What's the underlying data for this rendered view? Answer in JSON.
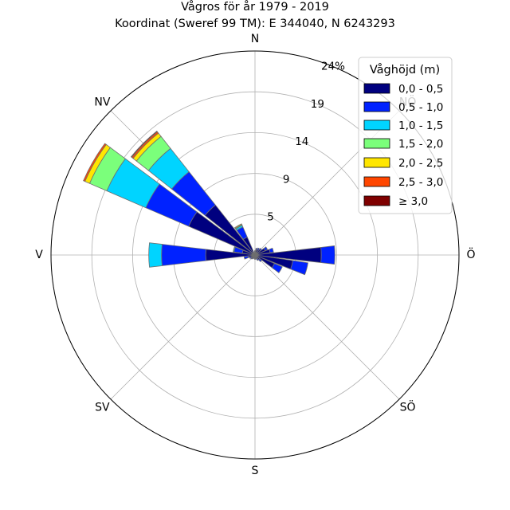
{
  "chart_data": {
    "type": "wind-rose",
    "title": "Vågros för år 1979 - 2019",
    "subtitle": "Koordinat (Sweref 99 TM): E 344040, N 6243293",
    "directions": [
      "Ö",
      "NÖ",
      "N",
      "NV",
      "V",
      "SV",
      "S",
      "SÖ"
    ],
    "radial_ticks": [
      "5",
      "9",
      "14",
      "19",
      "24%"
    ],
    "radial_tick_values": [
      4.8,
      9.6,
      14.4,
      19.2,
      24
    ],
    "rmax": 24,
    "legend_title": "Våghöjd (m)",
    "legend_position": "top-right",
    "bins": [
      {
        "label": "0,0 - 0,5",
        "color": "#00007f"
      },
      {
        "label": "0,5 - 1,0",
        "color": "#0022ff"
      },
      {
        "label": "1,0 - 1,5",
        "color": "#00d4ff"
      },
      {
        "label": "1,5 - 2,0",
        "color": "#7bff7b"
      },
      {
        "label": "2,0 - 2,5",
        "color": "#ffe600"
      },
      {
        "label": "2,5 - 3,0",
        "color": "#ff4600"
      },
      {
        "label": "≥ 3,0",
        "color": "#7f0000"
      }
    ],
    "sectors": [
      {
        "angle": 0,
        "cumulative": [
          7.8,
          9.4,
          9.4,
          9.4,
          9.4,
          9.4,
          9.4
        ]
      },
      {
        "angle": 15,
        "cumulative": [
          1.8,
          2.2,
          2.2,
          2.2,
          2.2,
          2.2,
          2.2
        ]
      },
      {
        "angle": 30,
        "cumulative": [
          1.3,
          1.6,
          1.6,
          1.6,
          1.6,
          1.6,
          1.6
        ]
      },
      {
        "angle": 45,
        "cumulative": [
          0.8,
          1.0,
          1.0,
          1.0,
          1.0,
          1.0,
          1.0
        ]
      },
      {
        "angle": 60,
        "cumulative": [
          0.7,
          0.9,
          0.9,
          0.9,
          0.9,
          0.9,
          0.9
        ]
      },
      {
        "angle": 75,
        "cumulative": [
          0.6,
          0.8,
          0.8,
          0.8,
          0.8,
          0.8,
          0.8
        ]
      },
      {
        "angle": 90,
        "cumulative": [
          0.4,
          0.5,
          0.5,
          0.5,
          0.5,
          0.5,
          0.5
        ]
      },
      {
        "angle": 105,
        "cumulative": [
          0.2,
          0.3,
          0.3,
          0.3,
          0.3,
          0.3,
          0.3
        ]
      },
      {
        "angle": 120,
        "cumulative": [
          2.3,
          3.6,
          3.8,
          3.9,
          4.0,
          4.0,
          4.0
        ]
      },
      {
        "angle": 135,
        "cumulative": [
          7.5,
          12.5,
          16.0,
          17.8,
          18.3,
          18.5,
          18.6
        ]
      },
      {
        "angle": 150,
        "cumulative": [
          8.5,
          14.0,
          19.0,
          21.2,
          21.8,
          22.0,
          22.0
        ]
      },
      {
        "angle": 165,
        "cumulative": [
          1.5,
          2.5,
          2.6,
          2.6,
          2.6,
          2.6,
          2.6
        ]
      },
      {
        "angle": 180,
        "cumulative": [
          5.8,
          11.0,
          12.5,
          12.5,
          12.5,
          12.5,
          12.5
        ]
      },
      {
        "angle": 195,
        "cumulative": [
          0.8,
          1.3,
          1.3,
          1.3,
          1.3,
          1.3,
          1.3
        ]
      },
      {
        "angle": 210,
        "cumulative": [
          0.5,
          0.7,
          0.7,
          0.7,
          0.7,
          0.7,
          0.7
        ]
      },
      {
        "angle": 225,
        "cumulative": [
          0.5,
          0.6,
          0.6,
          0.6,
          0.6,
          0.6,
          0.6
        ]
      },
      {
        "angle": 240,
        "cumulative": [
          0.4,
          0.5,
          0.5,
          0.5,
          0.5,
          0.5,
          0.5
        ]
      },
      {
        "angle": 255,
        "cumulative": [
          0.3,
          0.4,
          0.4,
          0.4,
          0.4,
          0.4,
          0.4
        ]
      },
      {
        "angle": 270,
        "cumulative": [
          0.4,
          0.5,
          0.5,
          0.5,
          0.5,
          0.5,
          0.5
        ]
      },
      {
        "angle": 285,
        "cumulative": [
          0.4,
          0.5,
          0.5,
          0.5,
          0.5,
          0.5,
          0.5
        ]
      },
      {
        "angle": 300,
        "cumulative": [
          0.5,
          0.7,
          0.7,
          0.7,
          0.7,
          0.7,
          0.7
        ]
      },
      {
        "angle": 315,
        "cumulative": [
          0.7,
          1.0,
          1.0,
          1.0,
          1.0,
          1.0,
          1.0
        ]
      },
      {
        "angle": 330,
        "cumulative": [
          2.5,
          3.5,
          3.5,
          3.5,
          3.5,
          3.5,
          3.5
        ]
      },
      {
        "angle": 345,
        "cumulative": [
          4.5,
          6.3,
          6.3,
          6.3,
          6.3,
          6.3,
          6.3
        ]
      }
    ]
  }
}
